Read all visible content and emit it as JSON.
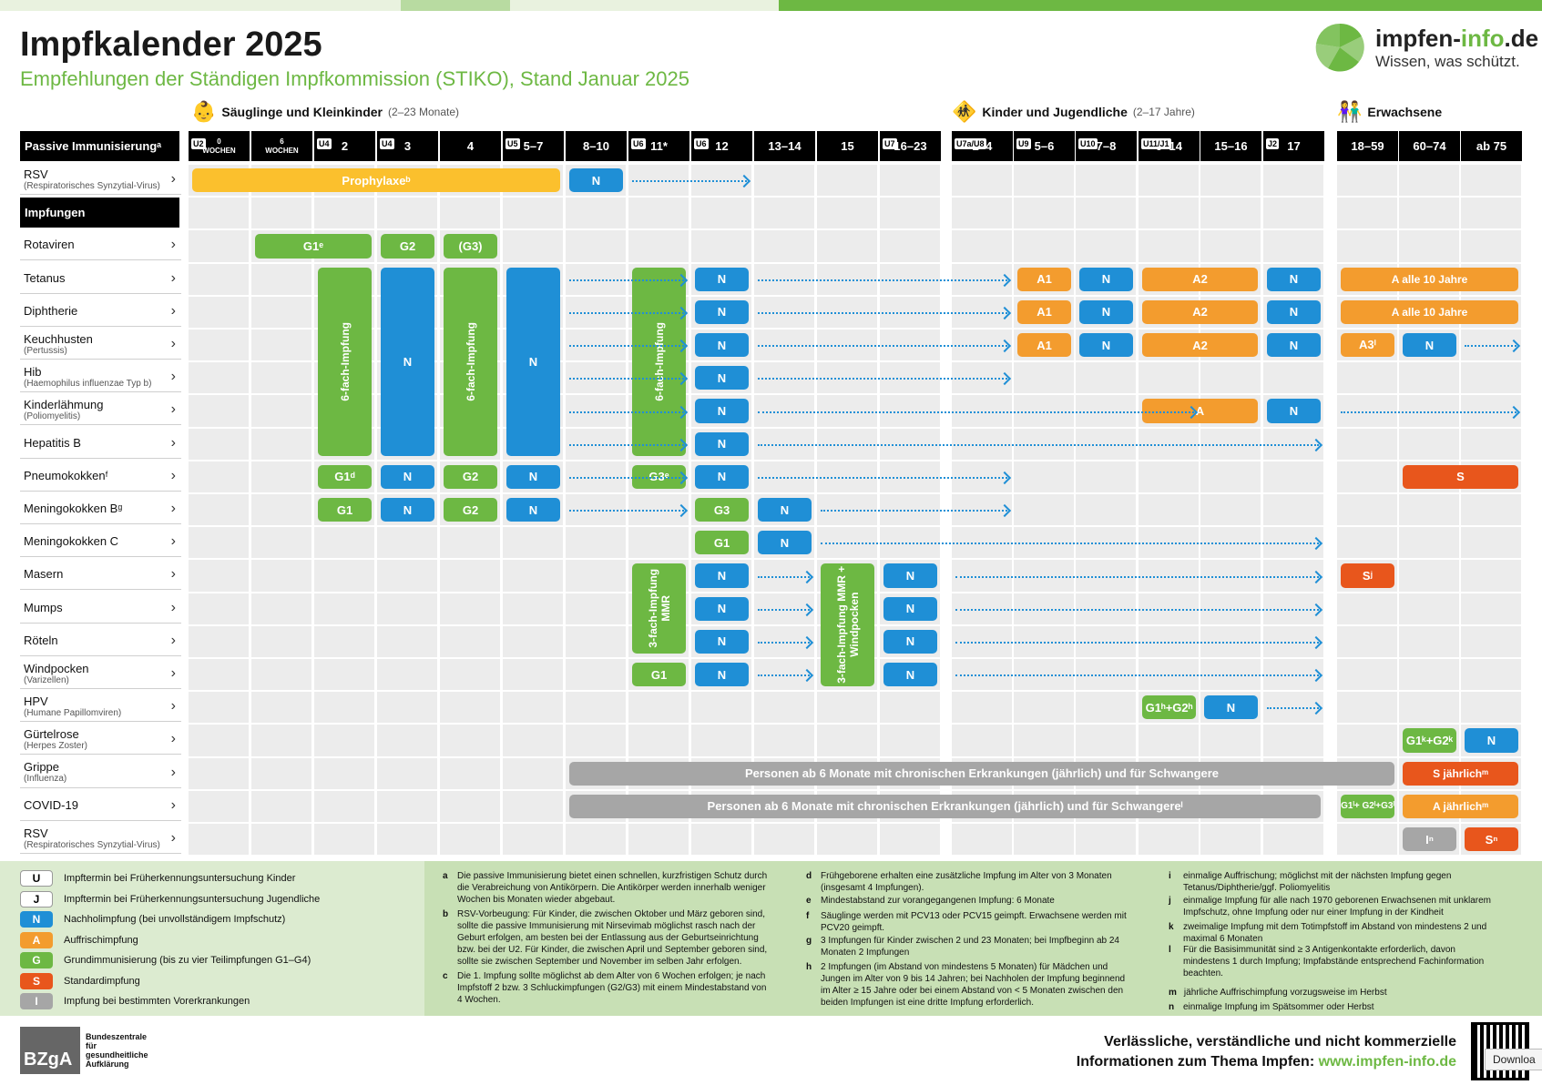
{
  "title": "Impfkalender 2025",
  "subtitle": "Empfehlungen der Ständigen Impfkommission (STIKO), Stand Januar 2025",
  "brand": {
    "name_a": "impfen-",
    "name_b": "info",
    "name_c": ".de",
    "slogan": "Wissen, was schützt."
  },
  "groups": [
    {
      "label": "Säuglinge und Kleinkinder",
      "sub": "(2–23 Monate)"
    },
    {
      "label": "Kinder und Jugendliche",
      "sub": "(2–17 Jahre)"
    },
    {
      "label": "Erwachsene",
      "sub": ""
    }
  ],
  "header_left": "Passive Immunisierungᵃ",
  "columns": [
    {
      "u": "U2",
      "label": "0",
      "small": "WOCHEN"
    },
    {
      "u": "",
      "label": "6",
      "small": "WOCHEN"
    },
    {
      "u": "U4",
      "label": "2",
      "small": ""
    },
    {
      "u": "U4",
      "label": "3",
      "small": ""
    },
    {
      "u": "",
      "label": "4",
      "small": ""
    },
    {
      "u": "U5",
      "label": "5–7",
      "small": ""
    },
    {
      "u": "",
      "label": "8–10",
      "small": ""
    },
    {
      "u": "U6",
      "label": "11*",
      "small": ""
    },
    {
      "u": "U6",
      "label": "12",
      "small": ""
    },
    {
      "u": "",
      "label": "13–14",
      "small": ""
    },
    {
      "u": "",
      "label": "15",
      "small": ""
    },
    {
      "u": "U7",
      "label": "16–23",
      "small": ""
    },
    {
      "u": "U7a/U8",
      "label": "2–4",
      "small": ""
    },
    {
      "u": "U9",
      "label": "5–6",
      "small": ""
    },
    {
      "u": "U10",
      "label": "7–8",
      "small": ""
    },
    {
      "u": "U11/J1",
      "label": "9–14",
      "small": ""
    },
    {
      "u": "",
      "label": "15–16",
      "small": ""
    },
    {
      "u": "J2",
      "label": "17",
      "small": ""
    },
    {
      "u": "",
      "label": "18–59",
      "small": ""
    },
    {
      "u": "",
      "label": "60–74",
      "small": ""
    },
    {
      "u": "",
      "label": "ab 75",
      "small": ""
    }
  ],
  "impfungen_header": "Impfungen",
  "rows": [
    {
      "name": "RSV",
      "latin": "(Respiratorisches Synzytial-Virus)"
    },
    {
      "name": "",
      "latin": ""
    },
    {
      "name": "Rotaviren",
      "latin": ""
    },
    {
      "name": "Tetanus",
      "latin": ""
    },
    {
      "name": "Diphtherie",
      "latin": ""
    },
    {
      "name": "Keuchhusten",
      "latin": "(Pertussis)"
    },
    {
      "name": "Hib",
      "latin": "(Haemophilus influenzae Typ b)"
    },
    {
      "name": "Kinderlähmung",
      "latin": "(Poliomyelitis)"
    },
    {
      "name": "Hepatitis B",
      "latin": ""
    },
    {
      "name": "Pneumokokkenᶠ",
      "latin": ""
    },
    {
      "name": "Meningokokken Bᵍ",
      "latin": ""
    },
    {
      "name": "Meningokokken C",
      "latin": ""
    },
    {
      "name": "Masern",
      "latin": ""
    },
    {
      "name": "Mumps",
      "latin": ""
    },
    {
      "name": "Röteln",
      "latin": ""
    },
    {
      "name": "Windpocken",
      "latin": "(Varizellen)"
    },
    {
      "name": "HPV",
      "latin": "(Humane Papillomviren)"
    },
    {
      "name": "Gürtelrose",
      "latin": "(Herpes Zoster)"
    },
    {
      "name": "Grippe",
      "latin": "(Influenza)"
    },
    {
      "name": "COVID-19",
      "latin": ""
    },
    {
      "name": "RSV",
      "latin": "(Respiratorisches Synzytial-Virus)"
    }
  ],
  "blocks": {
    "prophylaxe": "Prophylaxeᵇ",
    "N": "N",
    "G1e": "G1ᵉ",
    "G2": "G2",
    "G3p": "(G3)",
    "G1d": "G1ᵈ",
    "G3e": "G3ᵉ",
    "six": "6-fach-Impfung",
    "A1": "A1",
    "A2": "A2",
    "A": "A",
    "A10": "A alle 10 Jahre",
    "A3i": "A3ⁱ",
    "G1": "G1",
    "G3": "G3",
    "S": "S",
    "Sj": "Sʲ",
    "mmr3": "3-fach-Impfung MMR",
    "mmr4": "3-fach-Impfung MMR + Windpocken",
    "hpv": "G1ʰ+G2ʰ",
    "zoster": "G1ᵏ+G2ᵏ",
    "chronic": "Personen ab 6 Monate mit chronischen Erkrankungen (jährlich) und für Schwangere",
    "chronic2": "Personen ab 6 Monate mit chronischen Erkrankungen (jährlich) und für Schwangereˡ",
    "Sjm": "S jährlichᵐ",
    "Ajm": "A jährlichᵐ",
    "covid": "G1ˡ+ G2ˡ+G3ˡ",
    "In": "Iⁿ",
    "Sn": "Sⁿ"
  },
  "legend": [
    {
      "key": "U",
      "label": "Impftermin bei Früherkennungsuntersuchung Kinder",
      "color": "#ffffff"
    },
    {
      "key": "J",
      "label": "Impftermin bei Früherkennungsuntersuchung Jugendliche",
      "color": "#ffffff"
    },
    {
      "key": "N",
      "label": "Nachholimpfung (bei unvollständigem Impfschutz)",
      "color": "#1f8fd6"
    },
    {
      "key": "A",
      "label": "Auffrischimpfung",
      "color": "#f39c2e"
    },
    {
      "key": "G",
      "label": "Grundimmunisierung (bis zu vier Teilimpfungen G1–G4)",
      "color": "#6db843"
    },
    {
      "key": "S",
      "label": "Standardimpfung",
      "color": "#e8561c"
    },
    {
      "key": "I",
      "label": "Impfung bei bestimmten Vorerkrankungen",
      "color": "#a6a6a6"
    }
  ],
  "footnotes": [
    {
      "k": "a",
      "t": "Die passive Immunisierung bietet einen schnellen, kurzfristigen Schutz durch die Verabreichung von Antikörpern. Die Antikörper werden innerhalb weniger Wochen bis Monaten wieder abgebaut."
    },
    {
      "k": "b",
      "t": "RSV-Vorbeugung: Für Kinder, die zwischen Oktober und März geboren sind, sollte die passive Immunisierung mit Nirsevimab möglichst rasch nach der Geburt erfolgen, am besten bei der Entlassung aus der Geburtseinrichtung bzw. bei der U2. Für Kinder, die zwischen April und September geboren sind, sollte sie zwischen September und November im selben Jahr erfolgen."
    },
    {
      "k": "c",
      "t": "Die 1. Impfung sollte möglichst ab dem Alter von 6 Wochen erfolgen; je nach Impfstoff 2 bzw. 3 Schluckimpfungen (G2/G3) mit einem Mindestabstand von 4 Wochen."
    },
    {
      "k": "d",
      "t": "Frühgeborene erhalten eine zusätzliche Impfung im Alter von 3 Monaten (insgesamt 4 Impfungen)."
    },
    {
      "k": "e",
      "t": "Mindestabstand zur vorangegangenen Impfung: 6 Monate"
    },
    {
      "k": "f",
      "t": "Säuglinge werden mit PCV13 oder PCV15 geimpft. Erwachsene werden mit PCV20 geimpft."
    },
    {
      "k": "g",
      "t": "3 Impfungen für Kinder zwischen 2 und 23 Monaten; bei Impfbeginn ab 24 Monaten 2 Impfungen"
    },
    {
      "k": "h",
      "t": "2 Impfungen (im Abstand von mindestens 5 Monaten) für Mädchen und Jungen im Alter von 9 bis 14 Jahren; bei Nachholen der Impfung beginnend im Alter ≥ 15 Jahre oder bei einem Abstand von < 5 Monaten zwischen den beiden Impfungen ist eine dritte Impfung erforderlich."
    },
    {
      "k": "i",
      "t": "einmalige Auffrischung; möglichst mit der nächsten Impfung gegen Tetanus/Diphtherie/ggf. Poliomyelitis"
    },
    {
      "k": "j",
      "t": "einmalige Impfung für alle nach 1970 geborenen Erwachsenen mit unklarem Impfschutz, ohne Impfung oder nur einer Impfung in der Kindheit"
    },
    {
      "k": "k",
      "t": "zweimalige Impfung mit dem Totimpfstoff im Abstand von mindestens 2 und maximal 6 Monaten"
    },
    {
      "k": "l",
      "t": "Für die Basisimmunität sind ≥ 3 Antigenkontakte erforderlich, davon mindestens 1 durch Impfung; Impfabstände entsprechend Fachinformation beachten."
    },
    {
      "k": "m",
      "t": "jährliche Auffrischimpfung vorzugsweise im Herbst"
    },
    {
      "k": "n",
      "t": "einmalige Impfung im Spätsommer oder Herbst"
    }
  ],
  "bzga": {
    "abbr": "BZgA",
    "text": "Bundeszentrale für gesundheitliche Aufklärung"
  },
  "tagline": {
    "line1": "Verlässliche, verständliche und nicht kommerzielle",
    "line2": "Informationen zum Thema Impfen:",
    "url": "www.impfen-info.de"
  },
  "download": "Downloa"
}
